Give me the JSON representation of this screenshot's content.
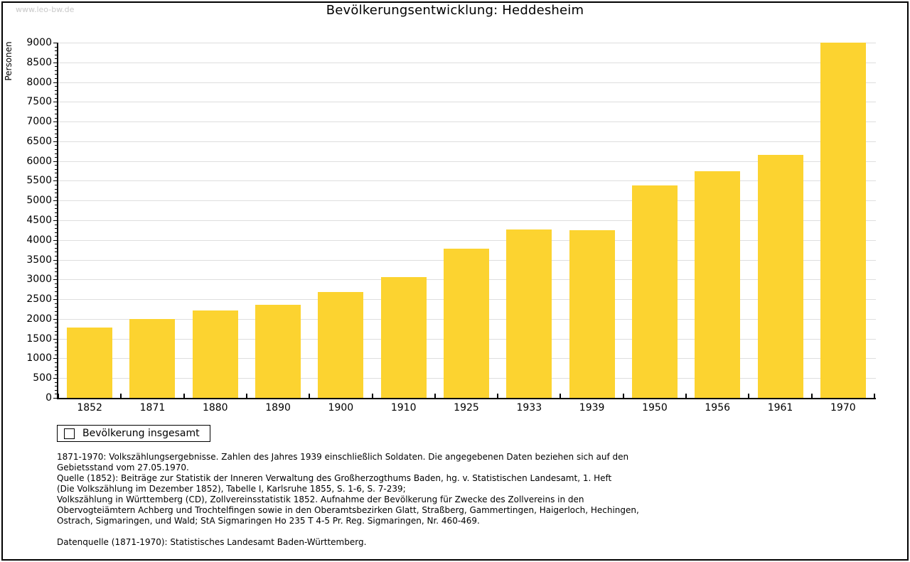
{
  "watermark": "www.leo-bw.de",
  "chart_data": {
    "type": "bar",
    "title": "Bevölkerungsentwicklung: Heddesheim",
    "ylabel": "Personen",
    "xlabel": "",
    "categories": [
      "1852",
      "1871",
      "1880",
      "1890",
      "1900",
      "1910",
      "1925",
      "1933",
      "1939",
      "1950",
      "1956",
      "1961",
      "1970"
    ],
    "values": [
      1790,
      2000,
      2215,
      2360,
      2690,
      3060,
      3775,
      4260,
      4245,
      5390,
      5750,
      6155,
      9000
    ],
    "ylim": [
      0,
      9000
    ],
    "ytick_step": 500,
    "ytick_minor_step": 100,
    "grid": true,
    "bar_color": "#fcd330",
    "gridline_color": "#dedede",
    "legend": {
      "label": "Bevölkerung insgesamt",
      "position": "bottom-left",
      "swatch_color": "#fcd330"
    }
  },
  "footnotes": {
    "lines": [
      "1871-1970: Volkszählungsergebnisse. Zahlen des Jahres 1939 einschließlich Soldaten. Die angegebenen Daten beziehen sich auf den",
      "Gebietsstand vom 27.05.1970.",
      "Quelle (1852): Beiträge zur Statistik der Inneren Verwaltung des Großherzogthums Baden, hg. v. Statistischen Landesamt, 1. Heft",
      "(Die Volkszählung im Dezember 1852), Tabelle I, Karlsruhe 1855, S. 1-6, S. 7-239;",
      "Volkszählung in Württemberg (CD), Zollvereinsstatistik 1852. Aufnahme der Bevölkerung für Zwecke des Zollvereins in den",
      "Obervogteiämtern Achberg und Trochtelfingen sowie in den Oberamtsbezirken Glatt, Straßberg, Gammertingen, Haigerloch, Hechingen,",
      "Ostrach, Sigmaringen, und Wald; StA Sigmaringen Ho 235 T 4-5 Pr. Reg. Sigmaringen, Nr. 460-469."
    ],
    "datasource": "Datenquelle (1871-1970): Statistisches Landesamt Baden-Württemberg."
  }
}
